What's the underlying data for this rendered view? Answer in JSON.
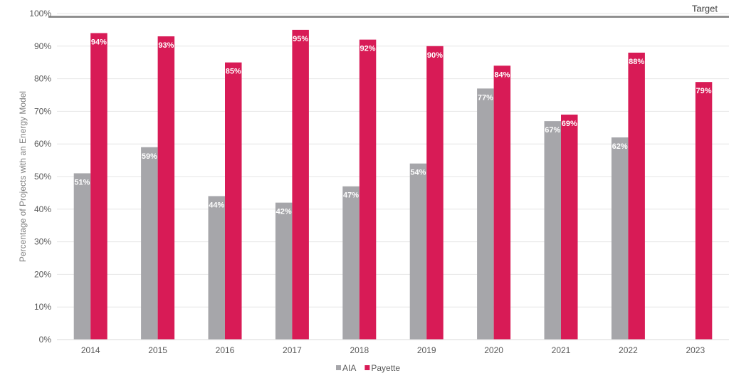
{
  "chart_data": {
    "type": "bar",
    "title": "",
    "xlabel": "",
    "ylabel": "Percentage of Projects with an Energy Model",
    "categories": [
      "2014",
      "2015",
      "2016",
      "2017",
      "2018",
      "2019",
      "2020",
      "2021",
      "2022",
      "2023"
    ],
    "series": [
      {
        "name": "AIA",
        "color": "#a6a6aa",
        "values": [
          51,
          59,
          44,
          42,
          47,
          54,
          77,
          67,
          62,
          null
        ]
      },
      {
        "name": "Payette",
        "color": "#d81b56",
        "values": [
          94,
          93,
          85,
          95,
          92,
          90,
          84,
          69,
          88,
          79
        ]
      }
    ],
    "data_labels": [
      [
        "51%",
        "59%",
        "44%",
        "42%",
        "47%",
        "54%",
        "77%",
        "67%",
        "62%",
        null
      ],
      [
        "94%",
        "93%",
        "85%",
        "95%",
        "92%",
        "90%",
        "84%",
        "69%",
        "88%",
        "79%"
      ]
    ],
    "ylim": [
      0,
      100
    ],
    "yticks": [
      0,
      10,
      20,
      30,
      40,
      50,
      60,
      70,
      80,
      90,
      100
    ],
    "ytick_labels": [
      "0%",
      "10%",
      "20%",
      "30%",
      "40%",
      "50%",
      "60%",
      "70%",
      "80%",
      "90%",
      "100%"
    ],
    "target": {
      "label": "Target",
      "value": 99,
      "color": "#808080"
    },
    "grid": true,
    "legend_position": "bottom-center"
  }
}
